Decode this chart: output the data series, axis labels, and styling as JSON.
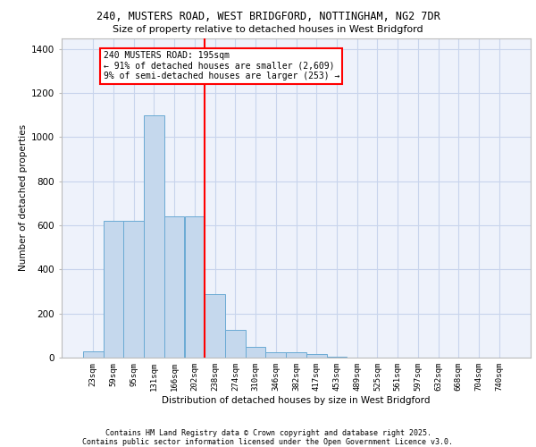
{
  "title_line1": "240, MUSTERS ROAD, WEST BRIDGFORD, NOTTINGHAM, NG2 7DR",
  "title_line2": "Size of property relative to detached houses in West Bridgford",
  "xlabel": "Distribution of detached houses by size in West Bridgford",
  "ylabel": "Number of detached properties",
  "footer_line1": "Contains HM Land Registry data © Crown copyright and database right 2025.",
  "footer_line2": "Contains public sector information licensed under the Open Government Licence v3.0.",
  "bin_labels": [
    "23sqm",
    "59sqm",
    "95sqm",
    "131sqm",
    "166sqm",
    "202sqm",
    "238sqm",
    "274sqm",
    "310sqm",
    "346sqm",
    "382sqm",
    "417sqm",
    "453sqm",
    "489sqm",
    "525sqm",
    "561sqm",
    "597sqm",
    "632sqm",
    "668sqm",
    "704sqm",
    "740sqm"
  ],
  "bar_values": [
    30,
    620,
    620,
    1100,
    640,
    640,
    290,
    125,
    50,
    25,
    25,
    15,
    3,
    2,
    1,
    1,
    1,
    0,
    0,
    0,
    0
  ],
  "bar_color": "#c5d8ed",
  "bar_edge_color": "#6aaad4",
  "vline_x": 5.5,
  "vline_color": "red",
  "annotation_text": "240 MUSTERS ROAD: 195sqm\n← 91% of detached houses are smaller (2,609)\n9% of semi-detached houses are larger (253) →",
  "ylim_max": 1450,
  "background_color": "#eef2fb",
  "grid_color": "#c8d4ec"
}
